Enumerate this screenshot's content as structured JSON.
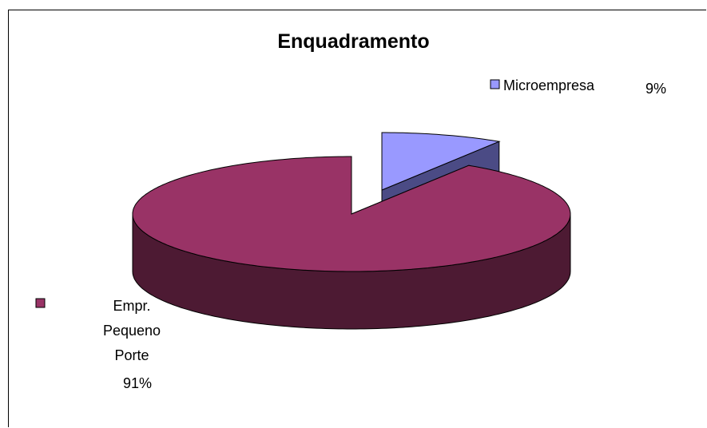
{
  "chart_data": {
    "type": "pie3d",
    "title": "Enquadramento",
    "categories": [
      "Microempresa",
      "Empr. Pequeno Porte"
    ],
    "values": [
      9,
      91
    ],
    "value_labels": [
      "9%",
      "91%"
    ],
    "colors": [
      "#9999ff",
      "#993366"
    ],
    "side_colors": [
      "#4b4b85",
      "#4d1a33"
    ]
  }
}
